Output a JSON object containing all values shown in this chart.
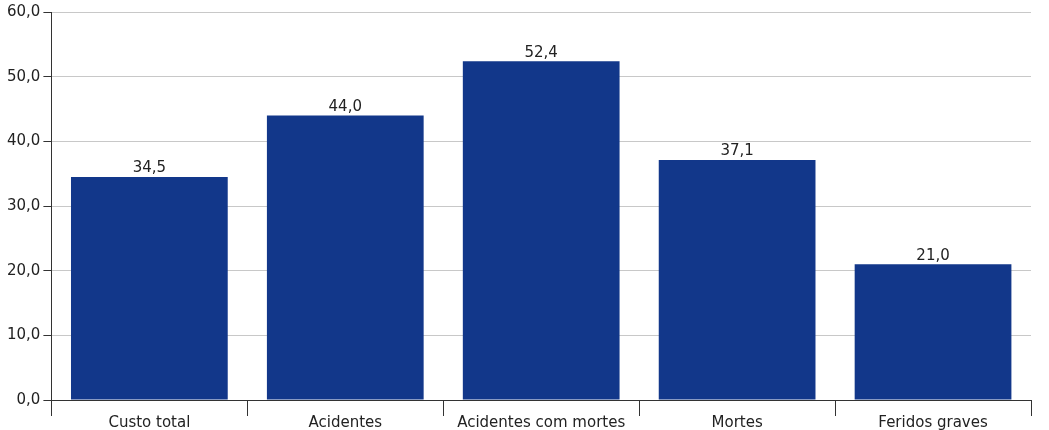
{
  "chart_data": {
    "type": "bar",
    "categories": [
      "Custo total",
      "Acidentes",
      "Acidentes com mortes",
      "Mortes",
      "Feridos graves"
    ],
    "values": [
      34.5,
      44.0,
      52.4,
      37.1,
      21.0
    ],
    "color": "#12378a",
    "value_labels": [
      "34,5",
      "44,0",
      "52,4",
      "37,1",
      "21,0"
    ],
    "ylim": [
      0,
      60
    ],
    "yticks": [
      {
        "value": 0,
        "label": "0,0"
      },
      {
        "value": 10,
        "label": "10,0"
      },
      {
        "value": 20,
        "label": "20,0"
      },
      {
        "value": 30,
        "label": "30,0"
      },
      {
        "value": 40,
        "label": "40,0"
      },
      {
        "value": 50,
        "label": "50,0"
      },
      {
        "value": 60,
        "label": "60,0"
      }
    ],
    "grid": "y",
    "legend": false
  }
}
